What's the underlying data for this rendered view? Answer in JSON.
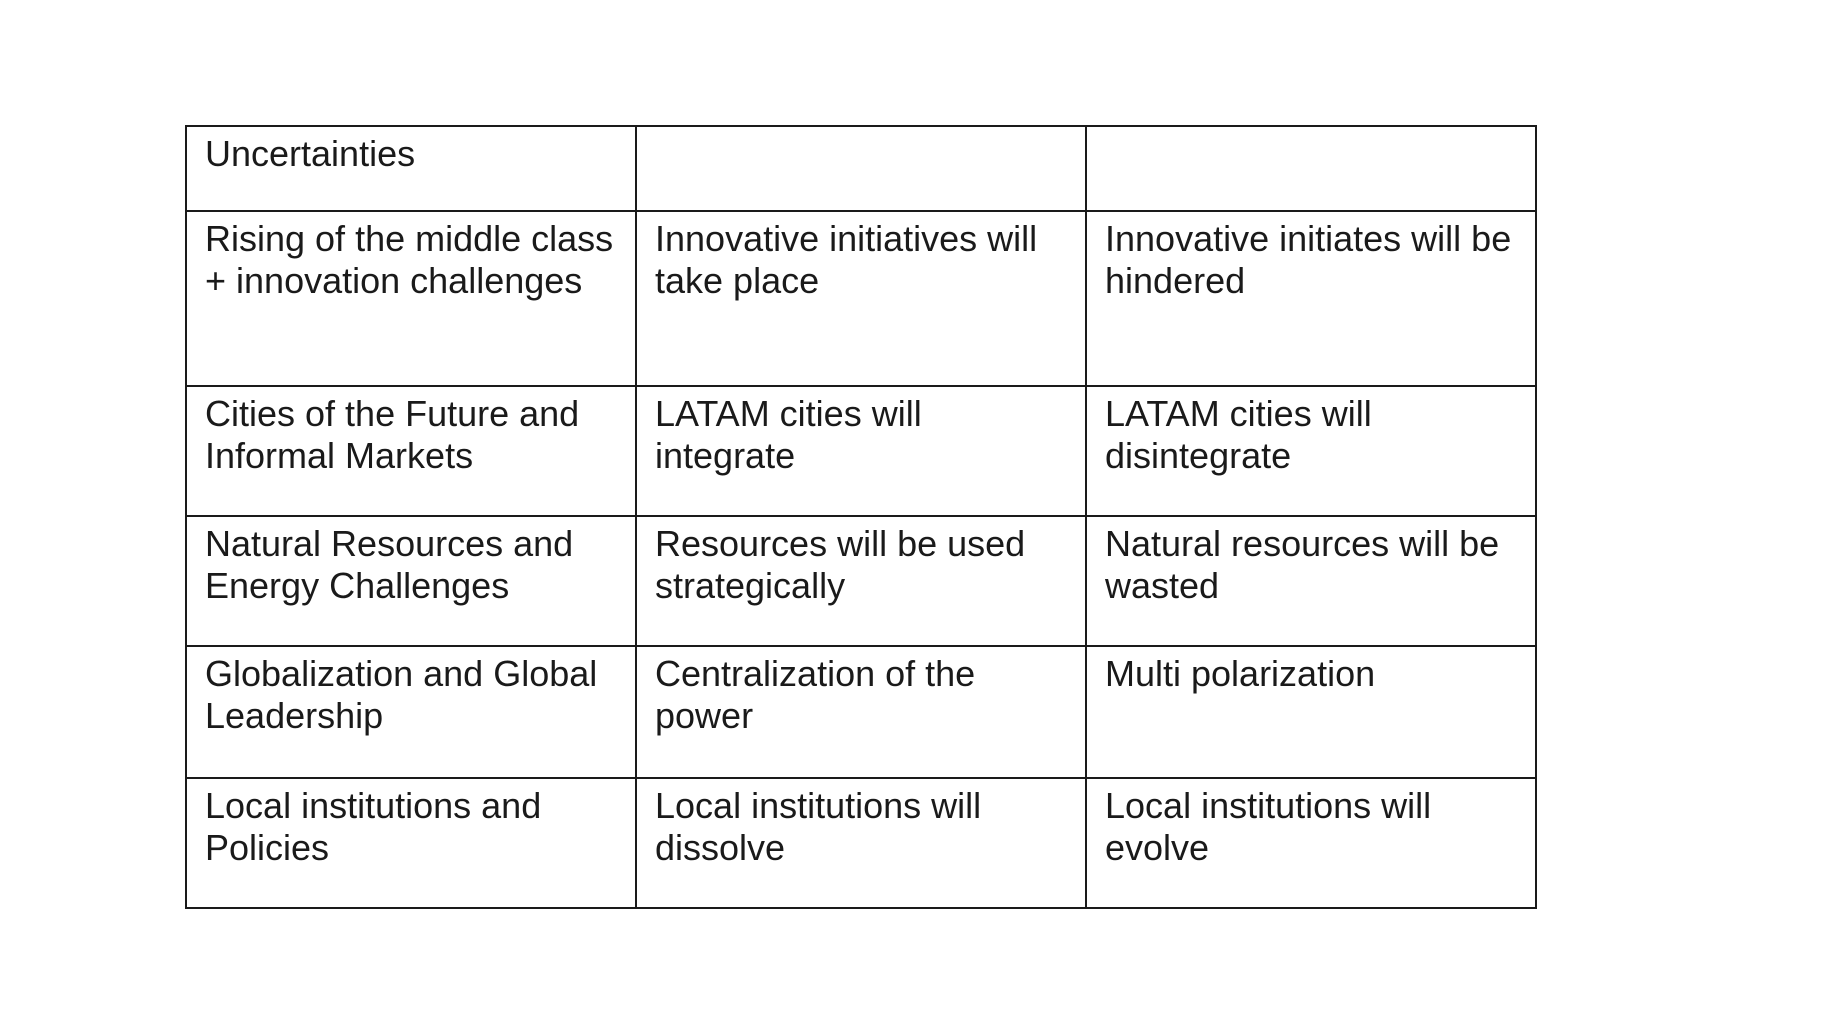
{
  "table": {
    "rows": [
      [
        "Uncertainties",
        "",
        ""
      ],
      [
        "Rising of the middle class + innovation challenges",
        "Innovative initiatives will take place",
        "Innovative initiates will be hindered"
      ],
      [
        "Cities of the Future and Informal Markets",
        "LATAM cities will integrate",
        "LATAM cities will disintegrate"
      ],
      [
        "Natural Resources and Energy Challenges",
        "Resources will be used strategically",
        "Natural resources will be wasted"
      ],
      [
        "Globalization and Global Leadership",
        "Centralization of the power",
        "Multi polarization"
      ],
      [
        "Local institutions and Policies",
        "Local institutions will dissolve",
        "Local institutions will evolve"
      ]
    ]
  }
}
